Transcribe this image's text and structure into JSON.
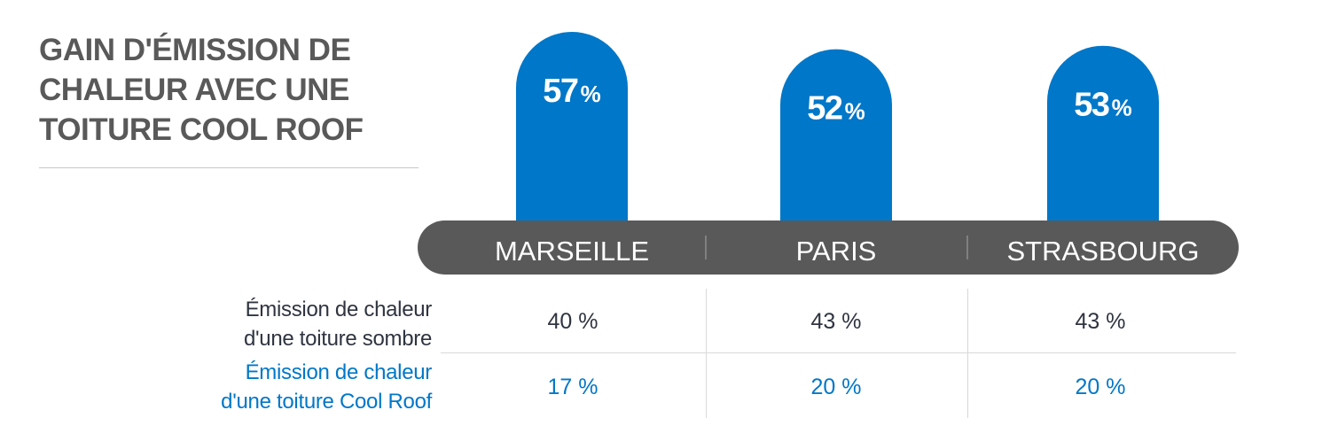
{
  "title": "GAIN D'ÉMISSION DE CHALEUR AVEC UNE TOITURE COOL ROOF",
  "colors": {
    "accent": "#0077c8",
    "band": "#595959",
    "text_dark": "#2f3440",
    "title": "#595959"
  },
  "chart_data": {
    "type": "bar",
    "title": "GAIN D'ÉMISSION DE CHALEUR AVEC UNE TOITURE COOL ROOF",
    "categories": [
      "MARSEILLE",
      "PARIS",
      "STRASBOURG"
    ],
    "values": [
      57,
      52,
      53
    ],
    "value_labels": [
      "57",
      "52",
      "53"
    ],
    "unit": "%",
    "grid": false,
    "legend": "none"
  },
  "table": {
    "rows": [
      {
        "label_line1": "Émission de chaleur",
        "label_line2": "d'une toiture sombre",
        "values": [
          "40 %",
          "43 %",
          "43 %"
        ]
      },
      {
        "label_line1": "Émission de chaleur",
        "label_line2": "d'une toiture Cool Roof",
        "values": [
          "17 %",
          "20 %",
          "20 %"
        ]
      }
    ]
  }
}
